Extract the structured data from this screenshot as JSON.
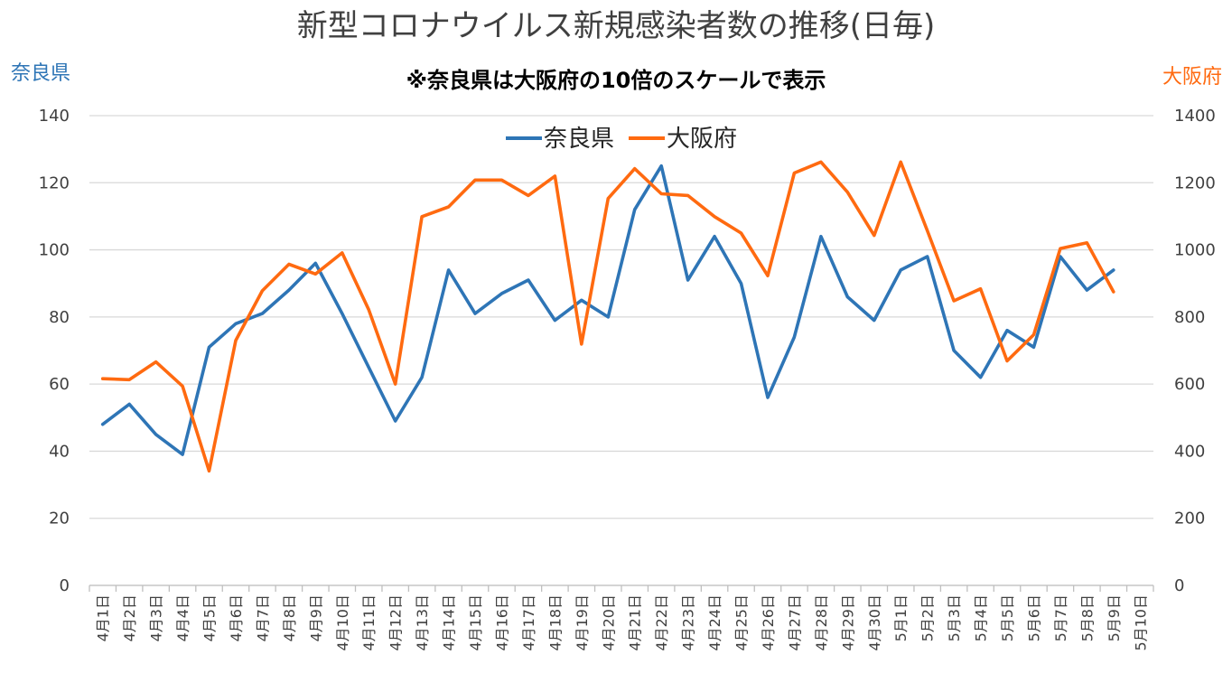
{
  "chart_data": {
    "type": "line",
    "title": "新型コロナウイルス新規感染者数の推移(日毎)",
    "subtitle": "※奈良県は大阪府の10倍のスケールで表示",
    "ylabel_left": "奈良県",
    "ylabel_right": "大阪府",
    "ylim_left": [
      0,
      140
    ],
    "ylim_right": [
      0,
      1400
    ],
    "yticks_left": [
      "0",
      "20",
      "40",
      "60",
      "80",
      "100",
      "120",
      "140"
    ],
    "yticks_right": [
      "0",
      "200",
      "400",
      "600",
      "800",
      "1000",
      "1200",
      "1400"
    ],
    "grid": true,
    "legend_position": "top",
    "categories": [
      "4月1日",
      "4月2日",
      "4月3日",
      "4月4日",
      "4月5日",
      "4月6日",
      "4月7日",
      "4月8日",
      "4月9日",
      "4月10日",
      "4月11日",
      "4月12日",
      "4月13日",
      "4月14日",
      "4月15日",
      "4月16日",
      "4月17日",
      "4月18日",
      "4月19日",
      "4月20日",
      "4月21日",
      "4月22日",
      "4月23日",
      "4月24日",
      "4月25日",
      "4月26日",
      "4月27日",
      "4月28日",
      "4月29日",
      "4月30日",
      "5月1日",
      "5月2日",
      "5月3日",
      "5月4日",
      "5月5日",
      "5月6日",
      "5月7日",
      "5月8日",
      "5月9日",
      "5月10日"
    ],
    "series": [
      {
        "name": "奈良県",
        "axis": "left",
        "color": "#2E75B6",
        "values": [
          48,
          54,
          45,
          39,
          71,
          78,
          81,
          88,
          96,
          81,
          65,
          49,
          62,
          94,
          81,
          87,
          91,
          79,
          85,
          80,
          112,
          125,
          91,
          104,
          90,
          56,
          74,
          104,
          86,
          79,
          94,
          98,
          70,
          62,
          76,
          71,
          98,
          88,
          94,
          null
        ]
      },
      {
        "name": "大阪府",
        "axis": "right",
        "color": "#FF6A10",
        "values": [
          616,
          613,
          666,
          594,
          341,
          730,
          878,
          957,
          928,
          991,
          822,
          600,
          1099,
          1128,
          1208,
          1208,
          1162,
          1220,
          719,
          1153,
          1242,
          1167,
          1162,
          1099,
          1050,
          923,
          1229,
          1262,
          1172,
          1043,
          1262,
          1057,
          848,
          884,
          669,
          747,
          1004,
          1021,
          875,
          null
        ]
      }
    ]
  }
}
